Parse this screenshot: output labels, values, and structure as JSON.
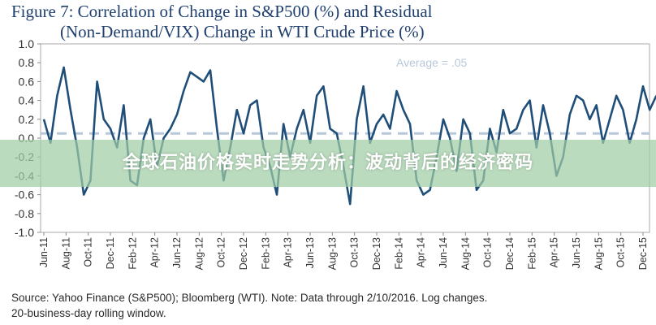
{
  "title_line1": "Figure 7: Correlation of Change in S&P500 (%) and Residual",
  "title_line2": "(Non-Demand/VIX) Change in WTI Crude Price (%)",
  "source_line1": "Source: Yahoo Finance (S&P500); Bloomberg (WTI). Note: Data through 2/10/2016. Log changes.",
  "source_line2": "20-business-day rolling window.",
  "banner_text": "全球石油价格实时走势分析：波动背后的经济密码",
  "colors": {
    "series": "#1f4e79",
    "average": "#b8c7d9",
    "axis": "#999999",
    "title": "#1f3f6e",
    "banner": "#a0cda5"
  },
  "chart_data": {
    "type": "line",
    "ylim": [
      -1.0,
      1.0
    ],
    "yticks": [
      "1.0",
      "0.8",
      "0.6",
      "0.4",
      "0.2",
      "0.0",
      "-0.2",
      "-0.4",
      "-0.6",
      "-0.8",
      "-1.0"
    ],
    "xticks": [
      "Jun-11",
      "Aug-11",
      "Oct-11",
      "Dec-11",
      "Feb-12",
      "Apr-12",
      "Jun-12",
      "Aug-12",
      "Oct-12",
      "Dec-12",
      "Feb-13",
      "Apr-13",
      "Jun-13",
      "Aug-13",
      "Oct-13",
      "Dec-13",
      "Feb-14",
      "Apr-14",
      "Jun-14",
      "Aug-14",
      "Oct-14",
      "Dec-14",
      "Feb-15",
      "Apr-15",
      "Jun-15",
      "Aug-15",
      "Oct-15",
      "Dec-15"
    ],
    "average": {
      "value": 0.05,
      "label": "Average = .05"
    },
    "series": [
      {
        "x": [
          0,
          0.3,
          0.6,
          0.9,
          1.2,
          1.5,
          1.8,
          2.1,
          2.4,
          2.7,
          3,
          3.3,
          3.6,
          3.9,
          4.2,
          4.5,
          4.8,
          5.1,
          5.4,
          5.7,
          6,
          6.3,
          6.6,
          6.9,
          7.2,
          7.5,
          7.8,
          8.1,
          8.4,
          8.7,
          9,
          9.3,
          9.6,
          9.9,
          10.2,
          10.5,
          10.8,
          11.1,
          11.4,
          11.7,
          12,
          12.3,
          12.6,
          12.9,
          13.2,
          13.5,
          13.8,
          14.1,
          14.4,
          14.7,
          15,
          15.3,
          15.6,
          15.9,
          16.2,
          16.5,
          16.8,
          17.1,
          17.4,
          17.7,
          18,
          18.3,
          18.6,
          18.9,
          19.2,
          19.5,
          19.8,
          20.1,
          20.4,
          20.7,
          21,
          21.3,
          21.6,
          21.9,
          22.2,
          22.5,
          22.8,
          23.1,
          23.4,
          23.7,
          24,
          24.3,
          24.6,
          24.9,
          25.2,
          25.5,
          25.8,
          26.1,
          26.4,
          26.7,
          27,
          27.3,
          27.6
        ],
        "y": [
          0.2,
          -0.05,
          0.45,
          0.75,
          0.3,
          -0.1,
          -0.6,
          -0.45,
          0.6,
          0.2,
          0.1,
          -0.1,
          0.35,
          -0.45,
          -0.5,
          0.0,
          0.2,
          -0.3,
          0.0,
          0.1,
          0.25,
          0.5,
          0.7,
          0.65,
          0.6,
          0.72,
          0.1,
          -0.45,
          -0.1,
          0.3,
          0.05,
          0.35,
          0.4,
          -0.1,
          -0.3,
          -0.6,
          0.15,
          -0.2,
          0.1,
          0.3,
          -0.05,
          0.45,
          0.55,
          0.1,
          0.05,
          -0.3,
          -0.7,
          0.2,
          0.55,
          -0.05,
          0.15,
          0.25,
          0.1,
          0.5,
          0.3,
          0.15,
          -0.45,
          -0.6,
          -0.55,
          -0.2,
          0.2,
          0.0,
          -0.35,
          0.2,
          0.05,
          -0.55,
          -0.45,
          0.1,
          -0.15,
          0.3,
          0.05,
          0.1,
          0.3,
          0.4,
          -0.1,
          0.35,
          0.05,
          -0.4,
          -0.2,
          0.25,
          0.45,
          0.4,
          0.2,
          0.35,
          -0.05,
          0.2,
          0.45,
          0.3,
          -0.05,
          0.2,
          0.55,
          0.3,
          0.45
        ]
      }
    ]
  }
}
